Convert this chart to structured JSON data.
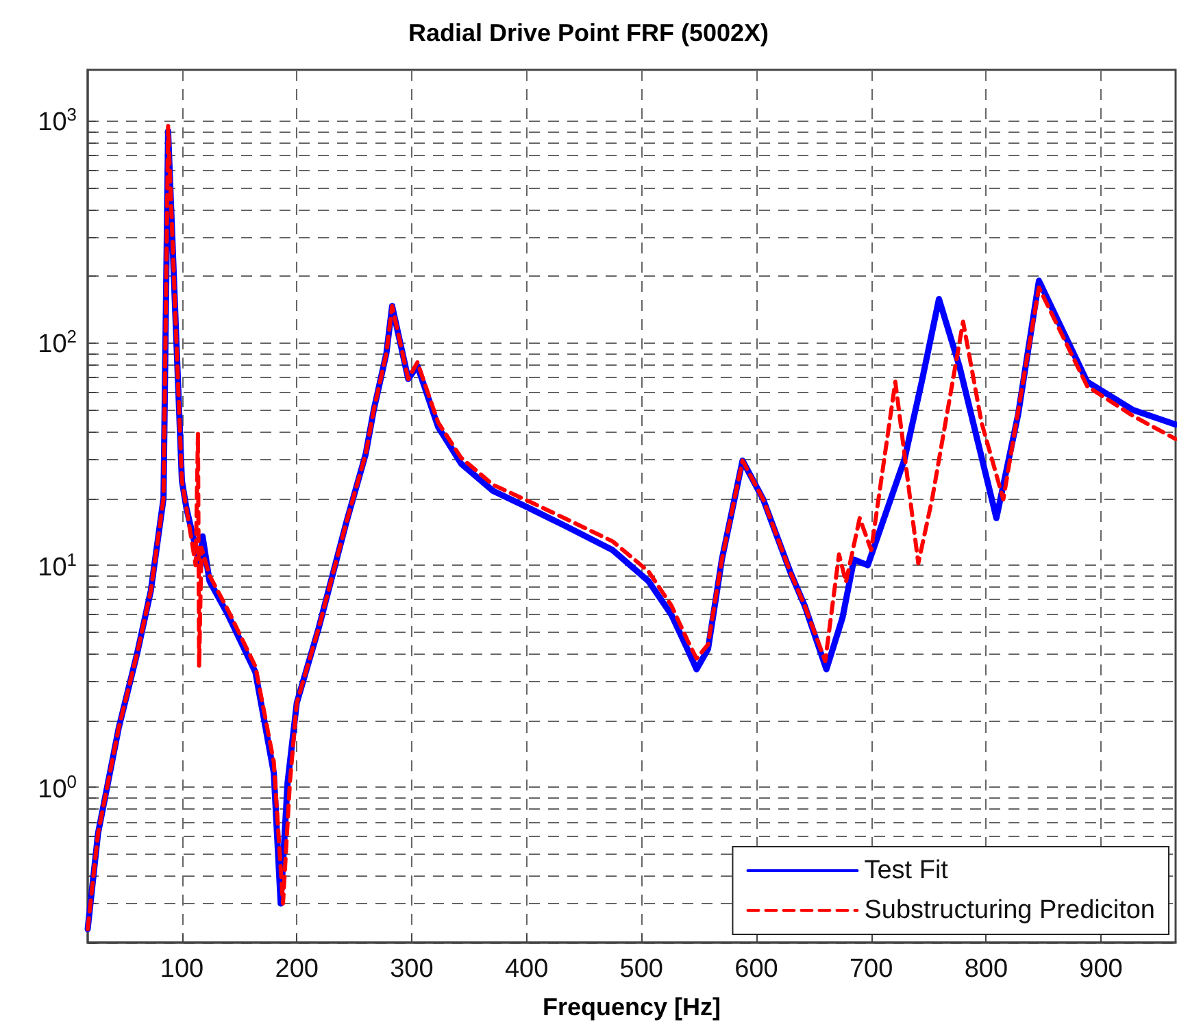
{
  "chart_data": {
    "type": "line",
    "title": "Radial Drive Point FRF (5002X)",
    "xlabel": "Frequency [Hz]",
    "series": [
      {
        "name": "Test Fit",
        "color": "#0000ff",
        "line_style": "solid",
        "x": [
          18,
          27,
          45,
          61,
          73,
          84,
          88,
          95,
          100,
          104,
          116,
          118,
          124,
          140,
          164,
          180,
          186,
          192,
          200,
          219,
          243,
          260,
          267,
          278,
          283,
          297,
          305,
          323,
          343,
          371,
          403,
          434,
          475,
          506,
          526,
          540,
          548,
          558,
          570,
          588,
          606,
          630,
          642,
          661,
          675,
          685,
          697,
          729,
          744,
          759,
          777,
          809,
          828,
          846,
          888,
          928,
          965
        ],
        "values": [
          0.23,
          0.62,
          1.85,
          4,
          7.7,
          20,
          900,
          109,
          24,
          18,
          9.8,
          13.5,
          8.5,
          6,
          3.3,
          1.16,
          0.3,
          1.05,
          2.4,
          5.2,
          15.5,
          31.7,
          50,
          90,
          147,
          69,
          79,
          42,
          28.7,
          21.6,
          18,
          15,
          11.7,
          8.5,
          6,
          4.2,
          3.4,
          4.2,
          10.6,
          29.6,
          19.8,
          9.2,
          6.6,
          3.4,
          5.8,
          10.6,
          10,
          30,
          67,
          158,
          78,
          16.3,
          48,
          191,
          67,
          50,
          43
        ]
      },
      {
        "name": "Substructuring Prediciton",
        "color": "#ff0000",
        "line_style": "dashed",
        "x": [
          18,
          27,
          45,
          61,
          73,
          84,
          88,
          95,
          100,
          104,
          112,
          114,
          115,
          117,
          124,
          140,
          164,
          180,
          188,
          194,
          200,
          219,
          243,
          260,
          267,
          278,
          283,
          297,
          305,
          323,
          343,
          371,
          403,
          434,
          475,
          506,
          526,
          540,
          548,
          558,
          570,
          588,
          606,
          630,
          642,
          660,
          672,
          678,
          690,
          700,
          721,
          741,
          753,
          780,
          796,
          815,
          846,
          888,
          928,
          965
        ],
        "values": [
          0.23,
          0.62,
          1.85,
          4,
          7.7,
          20,
          950,
          109,
          24,
          18,
          10,
          39,
          3.5,
          12,
          9,
          6.3,
          3.5,
          1.3,
          0.3,
          1.05,
          2.4,
          5.2,
          15.5,
          31.7,
          50,
          90,
          147,
          69,
          82,
          44,
          30.5,
          23,
          19.3,
          16.2,
          12.8,
          9.4,
          6.6,
          4.6,
          3.8,
          4.4,
          10.6,
          29.6,
          19.8,
          9.2,
          6.6,
          3.7,
          11.2,
          8.4,
          16.3,
          11.7,
          67,
          10.2,
          19.8,
          125,
          44,
          19.8,
          178,
          64,
          47,
          37
        ]
      }
    ],
    "xlim": [
      18,
      965
    ],
    "xticks": [
      100,
      200,
      300,
      400,
      500,
      600,
      700,
      800,
      900
    ],
    "ylim": [
      0.2,
      1700
    ],
    "log": "y",
    "yticks": [
      {
        "value": 0.2,
        "label": null
      },
      {
        "value": 0.3,
        "label": null
      },
      {
        "value": 0.4,
        "label": null
      },
      {
        "value": 0.5,
        "label": null
      },
      {
        "value": 0.6,
        "label": null
      },
      {
        "value": 0.7,
        "label": null
      },
      {
        "value": 0.8,
        "label": null
      },
      {
        "value": 0.9,
        "label": null
      },
      {
        "value": 1,
        "label": "10$^{0}$"
      },
      {
        "value": 2,
        "label": null
      },
      {
        "value": 3,
        "label": null
      },
      {
        "value": 4,
        "label": null
      },
      {
        "value": 5,
        "label": null
      },
      {
        "value": 6,
        "label": null
      },
      {
        "value": 7,
        "label": null
      },
      {
        "value": 8,
        "label": null
      },
      {
        "value": 9,
        "label": null
      },
      {
        "value": 10,
        "label": "10$^{1}$"
      },
      {
        "value": 20,
        "label": null
      },
      {
        "value": 30,
        "label": null
      },
      {
        "value": 40,
        "label": null
      },
      {
        "value": 50,
        "label": null
      },
      {
        "value": 60,
        "label": null
      },
      {
        "value": 70,
        "label": null
      },
      {
        "value": 80,
        "label": null
      },
      {
        "value": 90,
        "label": null
      },
      {
        "value": 100,
        "label": "10$^{2}$"
      },
      {
        "value": 200,
        "label": null
      },
      {
        "value": 300,
        "label": null
      },
      {
        "value": 400,
        "label": null
      },
      {
        "value": 500,
        "label": null
      },
      {
        "value": 600,
        "label": null
      },
      {
        "value": 700,
        "label": null
      },
      {
        "value": 800,
        "label": null
      },
      {
        "value": 900,
        "label": null
      },
      {
        "value": 1000,
        "label": "10$^{3}$"
      }
    ],
    "grid": true,
    "legend": "bottom right",
    "marker": "none"
  }
}
